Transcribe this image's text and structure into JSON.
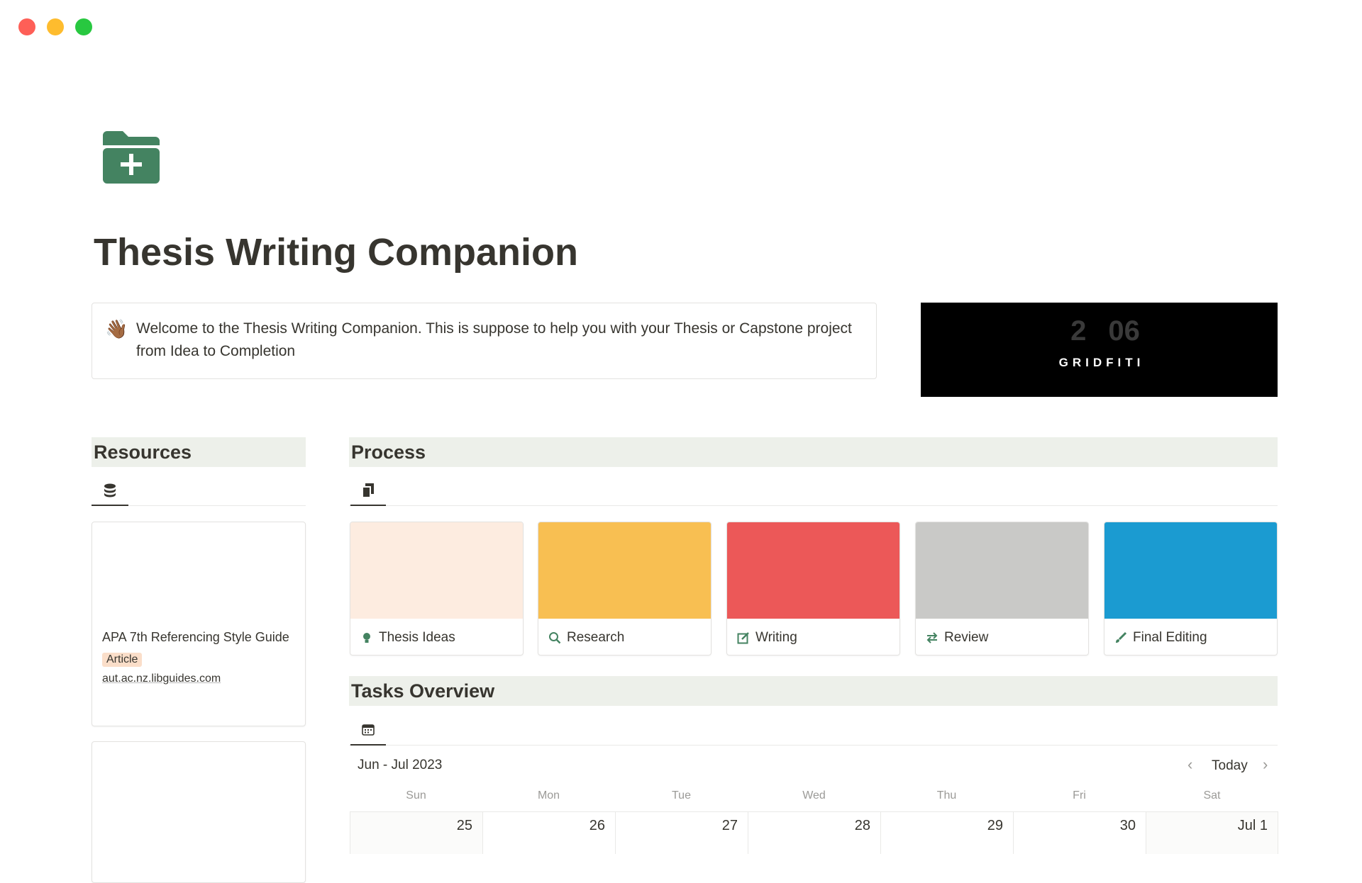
{
  "window": {
    "controls": [
      "close",
      "minimize",
      "maximize"
    ],
    "colors": {
      "close": "#fe5f57",
      "minimize": "#febc2e",
      "maximize": "#28c840"
    }
  },
  "page": {
    "icon": "folder-plus-icon",
    "icon_color": "#448361",
    "title": "Thesis Writing Companion"
  },
  "callout": {
    "emoji": "👋🏾",
    "text": "Welcome to the Thesis Writing Companion. This is suppose to help you with your Thesis or Capstone project from Idea to Completion"
  },
  "banner": {
    "logo_text": "GRIDFITI",
    "numbers": "2 06"
  },
  "resources": {
    "heading": "Resources",
    "view_icon": "database-icon",
    "cards": [
      {
        "title": "APA 7th Referencing Style Guide",
        "tag": "Article",
        "tag_color": "#fadec9",
        "url": "aut.ac.nz.libguides.com"
      },
      {
        "title": ""
      }
    ]
  },
  "process": {
    "heading": "Process",
    "view_icon": "gallery-icon",
    "cards": [
      {
        "label": "Thesis Ideas",
        "icon": "lightbulb-icon",
        "cover": "#fdece0"
      },
      {
        "label": "Research",
        "icon": "search-icon",
        "cover": "#f8bf52"
      },
      {
        "label": "Writing",
        "icon": "edit-icon",
        "cover": "#ec5858"
      },
      {
        "label": "Review",
        "icon": "arrows-swap-icon",
        "cover": "#c9c9c7"
      },
      {
        "label": "Final Editing",
        "icon": "brush-icon",
        "cover": "#1b9bd1"
      }
    ]
  },
  "tasks": {
    "heading": "Tasks Overview",
    "view_icon": "calendar-icon",
    "month": "Jun - Jul 2023",
    "today": "Today",
    "days": [
      "Sun",
      "Mon",
      "Tue",
      "Wed",
      "Thu",
      "Fri",
      "Sat"
    ],
    "dates": [
      "25",
      "26",
      "27",
      "28",
      "29",
      "30",
      "Jul 1"
    ]
  }
}
